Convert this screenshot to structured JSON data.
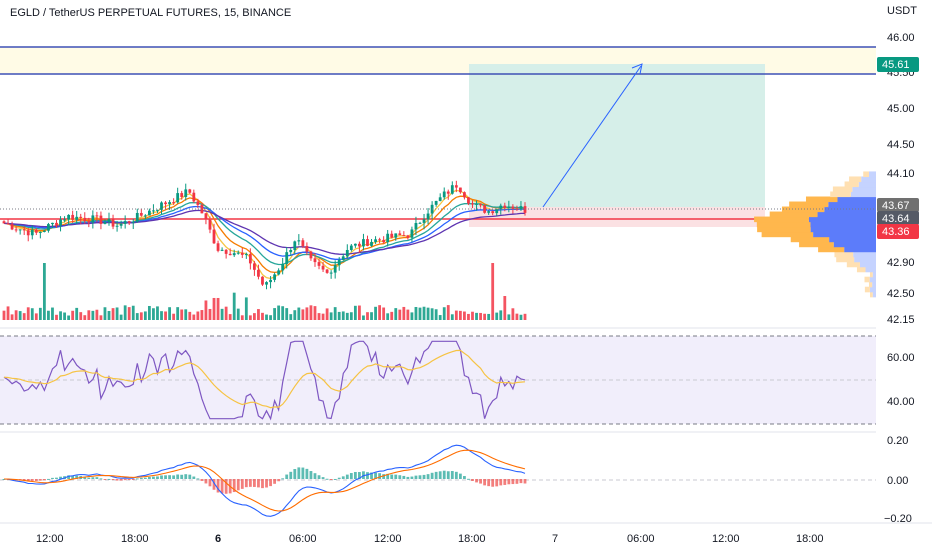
{
  "header": {
    "symbol_title": "EGLD / TetherUS PERPETUAL FUTURES, 15, BINANCE"
  },
  "axis": {
    "currency": "USDT",
    "price_ticks": [
      "46.00",
      "45.50",
      "45.00",
      "44.50",
      "44.10",
      "42.90",
      "42.50",
      "42.15"
    ],
    "rsi_ticks": [
      "60.00",
      "40.00"
    ],
    "macd_ticks": [
      "0.20",
      "0.00",
      "−0.20"
    ],
    "time_labels": [
      {
        "text": "12:00",
        "bold": false
      },
      {
        "text": "18:00",
        "bold": false
      },
      {
        "text": "6",
        "bold": true
      },
      {
        "text": "06:00",
        "bold": false
      },
      {
        "text": "12:00",
        "bold": false
      },
      {
        "text": "18:00",
        "bold": false
      },
      {
        "text": "7",
        "bold": false
      },
      {
        "text": "06:00",
        "bold": false
      },
      {
        "text": "12:00",
        "bold": false
      },
      {
        "text": "18:00",
        "bold": false
      }
    ]
  },
  "price_tags": [
    {
      "text": "45.61",
      "color": "#089981"
    },
    {
      "text": "43.67",
      "color": "#707070"
    },
    {
      "text": "43.64",
      "color": "#555a66"
    },
    {
      "text": "43.36",
      "color": "#f23645"
    }
  ],
  "colors": {
    "up": "#089981",
    "down": "#f23645",
    "hline": "#3f51b5",
    "resistance_zone": "#fffbe6",
    "target_zone": "#d6efe9",
    "stop_zone": "#fbe1e3",
    "rsi_band": "#f1eefb",
    "rsi_line": "#7e57c2",
    "rsi_ma": "#f6c343",
    "macd": "#2962ff",
    "signal": "#ff6d00",
    "ema": [
      "#f5c542",
      "#f57c00",
      "#26a69a",
      "#2962ff",
      "#5e35b1"
    ]
  },
  "chart_data": {
    "type": "candlestick",
    "symbol": "EGLD / TetherUS PERPETUAL FUTURES",
    "interval": "15",
    "exchange": "BINANCE",
    "panes": [
      "price",
      "volume",
      "rsi",
      "macd"
    ],
    "price_range": [
      42.1,
      46.15
    ],
    "rsi_range": [
      25,
      75
    ],
    "macd_range": [
      -0.22,
      0.22
    ],
    "horizontal_levels": [
      45.85,
      45.48,
      43.45
    ],
    "resistance_zone": [
      45.48,
      45.85
    ],
    "long_position": {
      "entry": 43.62,
      "target": 45.61,
      "stop": 43.36
    },
    "last_price": 43.64,
    "close_path": [
      {
        "t": 0,
        "p": 43.45
      },
      {
        "t": 0.06,
        "p": 43.3
      },
      {
        "t": 0.12,
        "p": 43.55
      },
      {
        "t": 0.18,
        "p": 43.5
      },
      {
        "t": 0.22,
        "p": 43.42
      },
      {
        "t": 0.26,
        "p": 43.55
      },
      {
        "t": 0.3,
        "p": 43.7
      },
      {
        "t": 0.355,
        "p": 43.9
      },
      {
        "t": 0.38,
        "p": 43.6
      },
      {
        "t": 0.41,
        "p": 43.1
      },
      {
        "t": 0.44,
        "p": 43.05
      },
      {
        "t": 0.47,
        "p": 42.95
      },
      {
        "t": 0.5,
        "p": 42.55
      },
      {
        "t": 0.53,
        "p": 42.85
      },
      {
        "t": 0.56,
        "p": 43.25
      },
      {
        "t": 0.59,
        "p": 42.9
      },
      {
        "t": 0.62,
        "p": 42.75
      },
      {
        "t": 0.66,
        "p": 43.1
      },
      {
        "t": 0.7,
        "p": 43.2
      },
      {
        "t": 0.74,
        "p": 43.25
      },
      {
        "t": 0.78,
        "p": 43.3
      },
      {
        "t": 0.81,
        "p": 43.6
      },
      {
        "t": 0.845,
        "p": 43.85
      },
      {
        "t": 0.87,
        "p": 44.0
      },
      {
        "t": 0.9,
        "p": 43.7
      },
      {
        "t": 0.93,
        "p": 43.62
      },
      {
        "t": 0.96,
        "p": 43.72
      },
      {
        "t": 1.0,
        "p": 43.64
      }
    ]
  }
}
